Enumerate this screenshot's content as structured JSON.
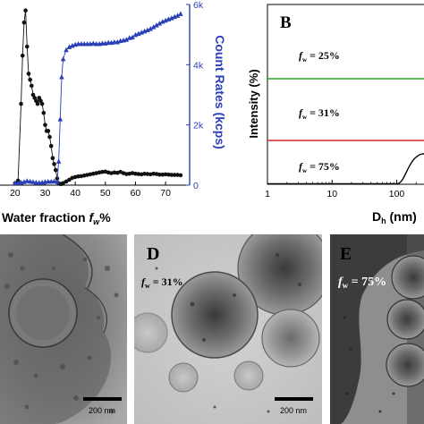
{
  "chart_data": [
    {
      "type": "line",
      "panel": "A",
      "xlabel_prefix": "Water fraction ",
      "xlabel_var": "f",
      "xlabel_sub": "w",
      "xlabel_suffix": "%",
      "ylabel_right": "Count Rates (kcps)",
      "xlim": [
        15,
        78
      ],
      "xticks": [
        "20",
        "30",
        "40",
        "50",
        "60",
        "70"
      ],
      "xtick_values": [
        20,
        30,
        40,
        50,
        60,
        70
      ],
      "ylim_right": [
        0,
        6000
      ],
      "yticks_right": [
        "0",
        "2k",
        "4k",
        "6k"
      ],
      "ytick_values_right": [
        0,
        2000,
        4000,
        6000
      ],
      "colors": {
        "black_series": "#111111",
        "blue_series": "#2b3fb8"
      },
      "series": [
        {
          "color_key": "black_series",
          "marker": "circle",
          "x": [
            20,
            21,
            22,
            22.5,
            23,
            23.5,
            24,
            24.5,
            25,
            25.5,
            26,
            26.5,
            27,
            27.5,
            28,
            28.5,
            29,
            29.5,
            30,
            30.5,
            31,
            31.5,
            32,
            32.5,
            33,
            33.5,
            34,
            34.5,
            35,
            35.5,
            36,
            37,
            38,
            39,
            40,
            41,
            42,
            43,
            44,
            45,
            46,
            47,
            48,
            49,
            50,
            51,
            52,
            53,
            54,
            55,
            56,
            57,
            58,
            59,
            60,
            61,
            62,
            63,
            64,
            65,
            66,
            67,
            68,
            69,
            70,
            71,
            72,
            73,
            74,
            75
          ],
          "y": [
            60,
            150,
            2700,
            4300,
            5400,
            5800,
            4600,
            3700,
            3500,
            3300,
            3000,
            2900,
            2800,
            2700,
            2900,
            2800,
            2700,
            2400,
            2000,
            1800,
            1800,
            1600,
            1300,
            900,
            700,
            500,
            220,
            60,
            40,
            40,
            70,
            120,
            180,
            240,
            270,
            290,
            300,
            320,
            340,
            360,
            380,
            400,
            420,
            440,
            450,
            420,
            400,
            420,
            410,
            440,
            400,
            370,
            380,
            400,
            380,
            370,
            360,
            380,
            370,
            360,
            380,
            370,
            350,
            350,
            360,
            350,
            340,
            340,
            340,
            330
          ]
        },
        {
          "color_key": "blue_series",
          "marker": "triangle",
          "x": [
            20,
            21,
            22,
            23,
            24,
            25,
            26,
            27,
            28,
            29,
            30,
            31,
            32,
            33,
            34,
            34.5,
            35,
            35.5,
            36,
            37,
            38,
            39,
            40,
            41,
            42,
            43,
            44,
            45,
            46,
            47,
            48,
            49,
            50,
            51,
            52,
            53,
            54,
            55,
            56,
            57,
            58,
            59,
            60,
            61,
            62,
            63,
            64,
            65,
            66,
            67,
            68,
            69,
            70,
            71,
            72,
            73,
            74,
            75
          ],
          "y": [
            80,
            80,
            100,
            120,
            150,
            130,
            120,
            100,
            90,
            100,
            120,
            130,
            130,
            140,
            120,
            800,
            2200,
            3600,
            4200,
            4500,
            4600,
            4640,
            4680,
            4700,
            4700,
            4700,
            4700,
            4700,
            4720,
            4700,
            4700,
            4720,
            4720,
            4740,
            4740,
            4760,
            4760,
            4800,
            4820,
            4840,
            4900,
            4920,
            5000,
            5040,
            5080,
            5120,
            5160,
            5200,
            5260,
            5320,
            5380,
            5440,
            5480,
            5520,
            5560,
            5600,
            5640,
            5700
          ]
        }
      ]
    },
    {
      "type": "line",
      "panel": "B",
      "title": "B",
      "ylabel": "Intensity (%)",
      "xlabel_prefix": "D",
      "xlabel_sub": "h",
      "xlabel_suffix": " (nm)",
      "x_scale": "log",
      "xlim": [
        1,
        300
      ],
      "xticks": [
        "1",
        "10",
        "100"
      ],
      "xtick_values": [
        1,
        10,
        100
      ],
      "fw_prefix": "f",
      "fw_sub": "w",
      "series": [
        {
          "label_value": " = 25%",
          "color": "#2ca02c",
          "flat": true
        },
        {
          "label_value": " = 31%",
          "color": "#d62728",
          "flat": true
        },
        {
          "label_value": " = 75%",
          "color": "#000000",
          "peak_start": 100,
          "peak_end": 300
        }
      ]
    }
  ],
  "tem_panels": [
    {
      "letter": "",
      "fw_value": "",
      "scale_label": "200 nm"
    },
    {
      "letter": "D",
      "fw_prefix": "f",
      "fw_sub": "w",
      "fw_value": " = 31%",
      "scale_label": "200 nm"
    },
    {
      "letter": "E",
      "fw_prefix": "f",
      "fw_sub": "w",
      "fw_value": " = 75%",
      "scale_label": ""
    }
  ]
}
